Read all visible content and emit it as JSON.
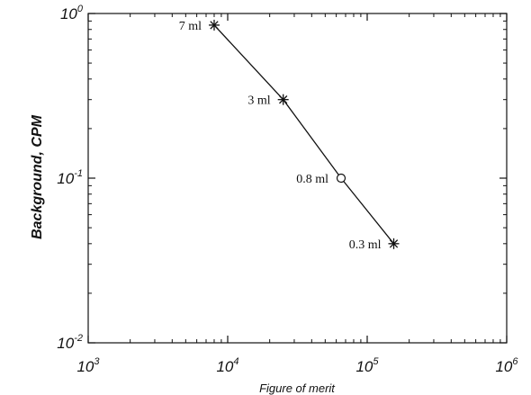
{
  "chart_data": {
    "type": "line",
    "xlabel": "Figure of merit",
    "ylabel": "Background, CPM",
    "xscale": "log",
    "yscale": "log",
    "xlim": [
      1000,
      1000000
    ],
    "ylim": [
      0.01,
      1
    ],
    "grid": false,
    "legend": "none",
    "x_ticks": [
      {
        "value": 1000,
        "base": "10",
        "exp": "3"
      },
      {
        "value": 10000,
        "base": "10",
        "exp": "4"
      },
      {
        "value": 100000,
        "base": "10",
        "exp": "5"
      },
      {
        "value": 1000000,
        "base": "10",
        "exp": "6"
      }
    ],
    "y_ticks": [
      {
        "value": 0.01,
        "base": "10",
        "exp": "-2"
      },
      {
        "value": 0.1,
        "base": "10",
        "exp": "-1"
      },
      {
        "value": 1,
        "base": "10",
        "exp": "0"
      }
    ],
    "series": [
      {
        "points": [
          {
            "x": 8000,
            "y": 0.85,
            "label": "7 ml",
            "marker": "asterisk"
          },
          {
            "x": 25000,
            "y": 0.3,
            "label": "3 ml",
            "marker": "asterisk"
          },
          {
            "x": 65000,
            "y": 0.1,
            "label": "0.8 ml",
            "marker": "circle"
          },
          {
            "x": 155000,
            "y": 0.04,
            "label": "0.3 ml",
            "marker": "asterisk"
          }
        ]
      }
    ],
    "colors": {
      "line": "#111111",
      "axes": "#111111",
      "background": "#ffffff"
    }
  }
}
